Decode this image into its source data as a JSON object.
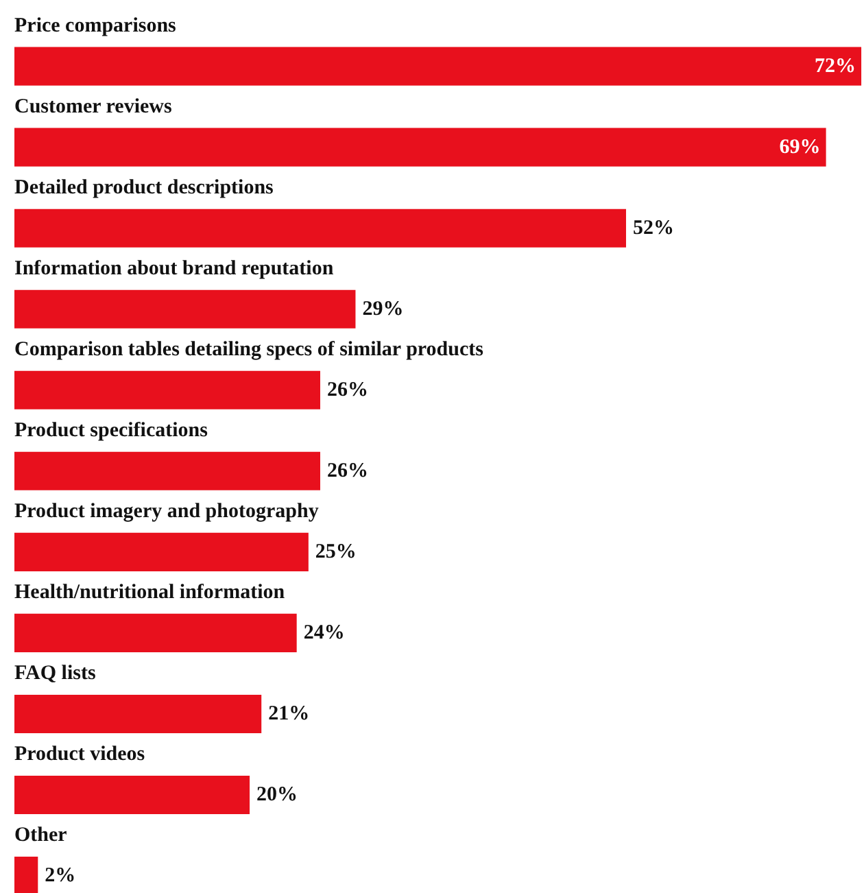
{
  "chart_data": {
    "type": "bar",
    "orientation": "horizontal",
    "categories": [
      "Price comparisons",
      "Customer reviews",
      "Detailed product descriptions",
      "Information about brand reputation",
      "Comparison tables detailing specs of similar products",
      "Product specifications",
      "Product imagery and photography",
      "Health/nutritional information",
      "FAQ lists",
      "Product videos",
      "Other"
    ],
    "values": [
      72,
      69,
      52,
      29,
      26,
      26,
      25,
      24,
      21,
      20,
      2
    ],
    "value_labels": [
      "72%",
      "69%",
      "52%",
      "29%",
      "26%",
      "26%",
      "25%",
      "24%",
      "21%",
      "20%",
      "2%"
    ],
    "color": "#e8101d",
    "tick_labels": false,
    "grid": false
  }
}
